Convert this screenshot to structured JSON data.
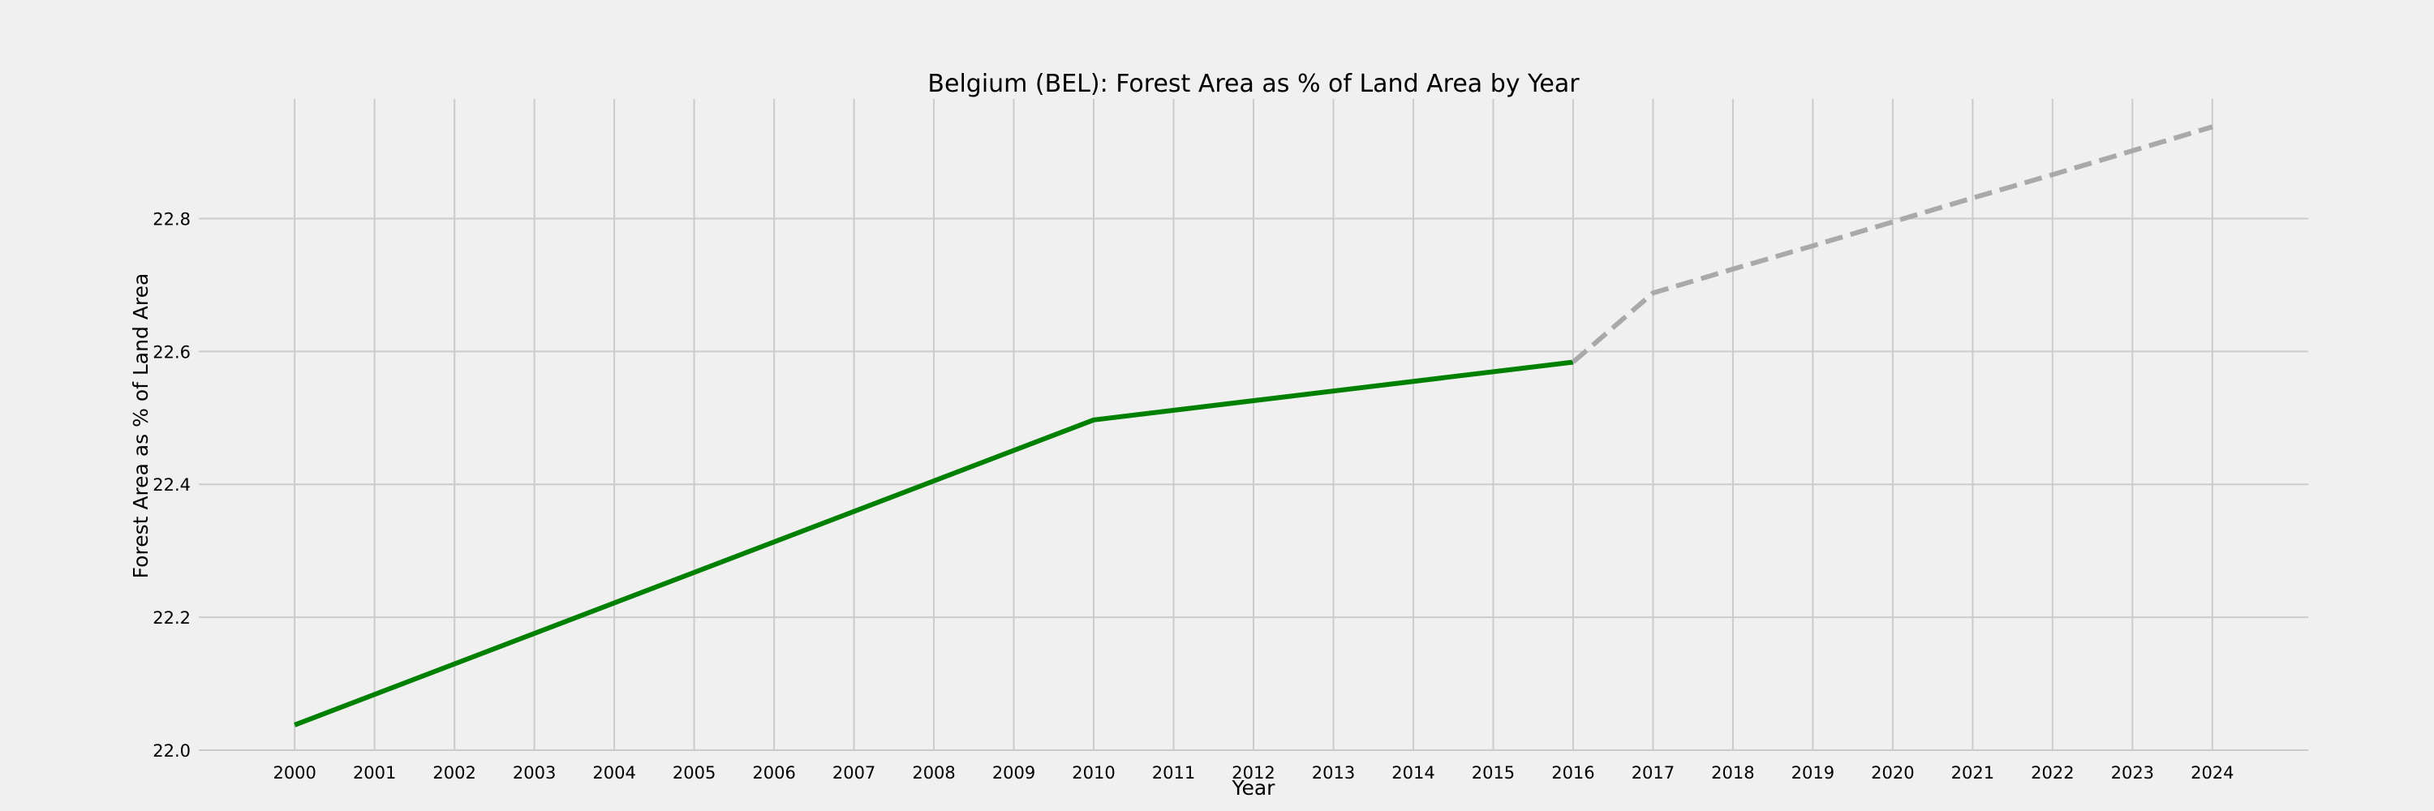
{
  "chart_data": {
    "type": "line",
    "title": "Belgium (BEL): Forest Area as % of Land Area by Year",
    "xlabel": "Year",
    "ylabel": "Forest Area as % of Land Area",
    "x_ticks": [
      2000,
      2001,
      2002,
      2003,
      2004,
      2005,
      2006,
      2007,
      2008,
      2009,
      2010,
      2011,
      2012,
      2013,
      2014,
      2015,
      2016,
      2017,
      2018,
      2019,
      2020,
      2021,
      2022,
      2023,
      2024
    ],
    "y_ticks": [
      22.0,
      22.2,
      22.4,
      22.6,
      22.8
    ],
    "xlim": [
      1998.8,
      2025.2
    ],
    "ylim": [
      22.0,
      22.98
    ],
    "grid": true,
    "series": [
      {
        "style": "solid",
        "color": "#008000",
        "x": [
          2000,
          2010,
          2016
        ],
        "y": [
          22.038,
          22.497,
          22.584
        ]
      },
      {
        "style": "dashed",
        "color": "#a9a9a9",
        "x": [
          2016,
          2017,
          2018,
          2019,
          2020,
          2021,
          2022,
          2023,
          2024
        ],
        "y": [
          22.584,
          22.688,
          22.724,
          22.759,
          22.795,
          22.831,
          22.866,
          22.902,
          22.938
        ]
      }
    ]
  }
}
